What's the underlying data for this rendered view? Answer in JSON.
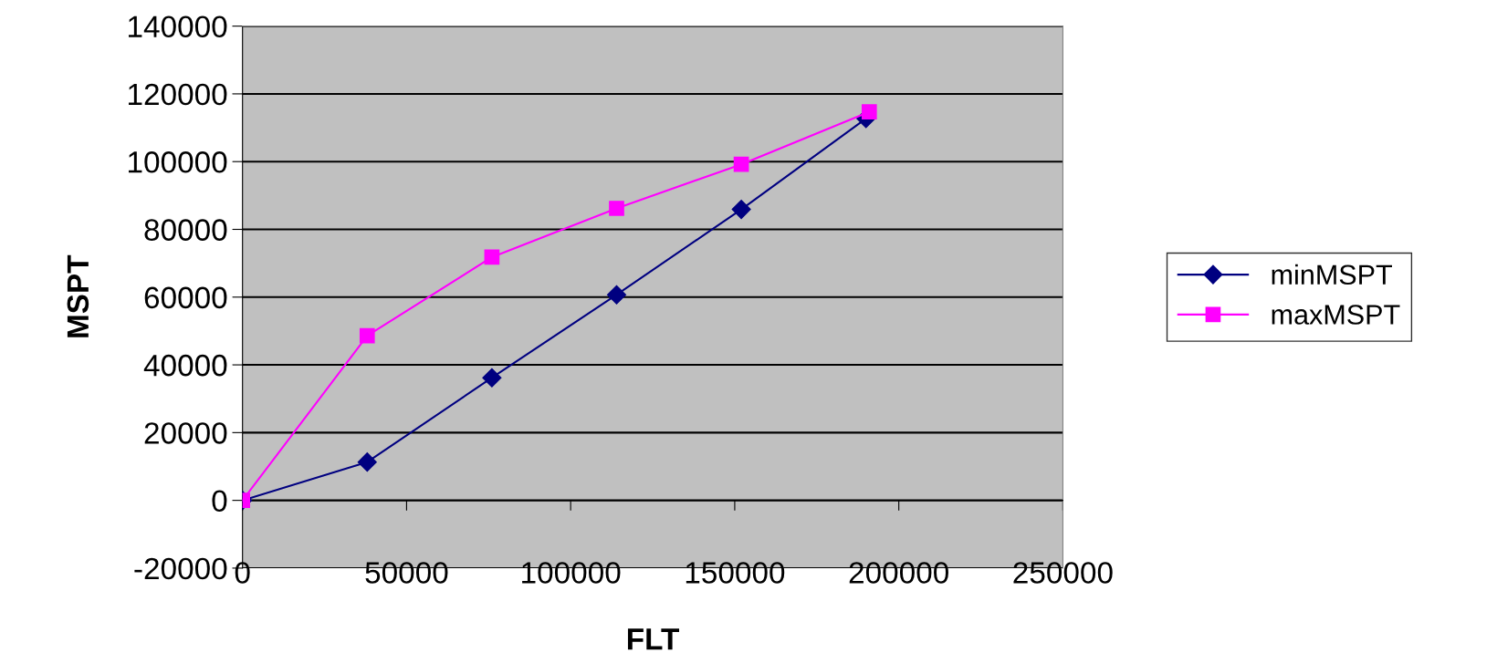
{
  "chart_data": {
    "type": "line",
    "xlabel": "FLT",
    "ylabel": "MSPT",
    "xlim": [
      0,
      250000
    ],
    "xticks": [
      0,
      50000,
      100000,
      150000,
      200000,
      250000
    ],
    "ylim": [
      -20000,
      140000
    ],
    "yticks": [
      -20000,
      0,
      20000,
      40000,
      60000,
      80000,
      100000,
      120000,
      140000
    ],
    "grid": "y",
    "legend": "right",
    "series": [
      {
        "name": "minMSPT",
        "color": "#000080",
        "marker": "diamond",
        "x": [
          0,
          38000,
          76000,
          114000,
          152000,
          190000
        ],
        "values": [
          0,
          11300,
          36200,
          60700,
          85900,
          112700
        ]
      },
      {
        "name": "maxMSPT",
        "color": "#ff00ff",
        "marker": "square",
        "x": [
          0,
          38000,
          76000,
          114000,
          152000,
          191000
        ],
        "values": [
          0,
          48600,
          71800,
          86200,
          99200,
          114700
        ]
      }
    ]
  }
}
